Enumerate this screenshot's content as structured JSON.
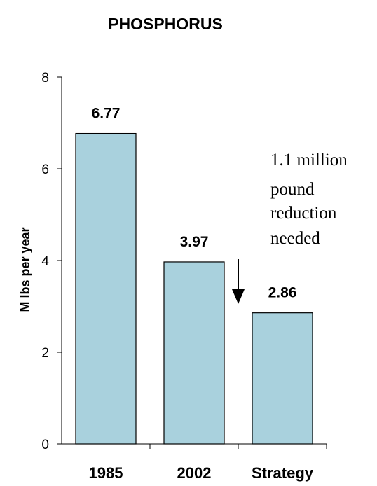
{
  "chart_data": {
    "type": "bar",
    "title": "PHOSPHORUS",
    "xlabel": "",
    "ylabel": "M lbs per year",
    "categories": [
      "1985",
      "2002",
      "Strategy"
    ],
    "values": [
      6.77,
      3.97,
      2.86
    ],
    "data_labels": [
      "6.77",
      "3.97",
      "2.86"
    ],
    "ylim": [
      0,
      8
    ],
    "yticks": [
      0,
      2,
      4,
      6,
      8
    ],
    "grid": false,
    "annotation": {
      "lines": [
        "1.1 million",
        "pound",
        "reduction",
        "needed"
      ],
      "arrow": "down"
    }
  },
  "colors": {
    "bar_fill": "#a9d1dd",
    "bar_stroke": "#000000",
    "axis": "#000000",
    "text": "#000000"
  }
}
